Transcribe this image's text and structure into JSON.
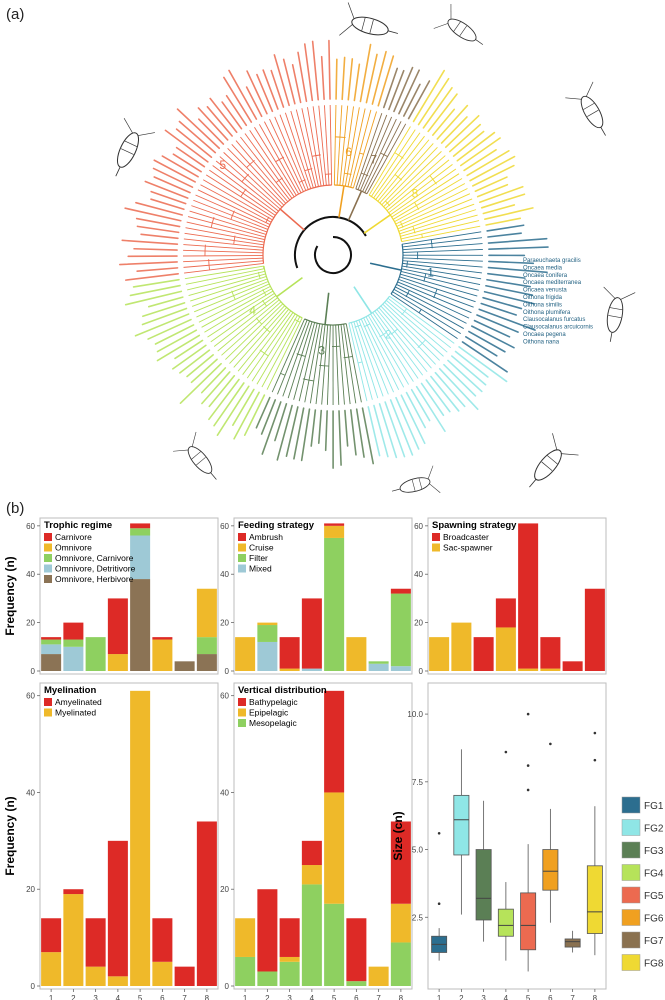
{
  "panel_a_label": "(a)",
  "panel_b_label": "(b)",
  "tree": {
    "group_labels": [
      "1",
      "2",
      "3",
      "4",
      "5",
      "6",
      "7",
      "8"
    ],
    "group_colors": [
      "#2c6e8f",
      "#8fe6e6",
      "#5b7f55",
      "#b6e35a",
      "#ec6a50",
      "#f0a020",
      "#8a7150",
      "#efd933"
    ],
    "right_species": [
      "Paraeuchaeta gracilis",
      "Oncaea media",
      "Oncaea conifera",
      "Oncaea mediterranea",
      "Oncaea venusta",
      "Oithona frigida",
      "Oithona similis",
      "Oithona plumifera",
      "Clausocalanus furcatus",
      "Clausocalanus arcuicornis",
      "Oncaea pegena",
      "Oithona nana"
    ]
  },
  "chart_data": [
    {
      "type": "bar",
      "stacked": true,
      "title": "Trophic regime",
      "categories": [
        "1",
        "2",
        "3",
        "4",
        "5",
        "6",
        "7",
        "8"
      ],
      "ylabel": "Frequency (n)",
      "ylim": [
        0,
        62
      ],
      "yticks": [
        0,
        20,
        40,
        60
      ],
      "series": [
        {
          "name": "Omnivore, Herbivore",
          "color": "#8b7355",
          "values": [
            7,
            0,
            0,
            0,
            38,
            0,
            4,
            7
          ]
        },
        {
          "name": "Omnivore, Detritivore",
          "color": "#9ec9d6",
          "values": [
            4,
            10,
            0,
            0,
            18,
            0,
            0,
            0
          ]
        },
        {
          "name": "Omnivore, Carnivore",
          "color": "#8ed060",
          "values": [
            2,
            3,
            14,
            0,
            3,
            0,
            0,
            7
          ]
        },
        {
          "name": "Omnivore",
          "color": "#efb92a",
          "values": [
            0,
            0,
            0,
            7,
            0,
            13,
            0,
            20
          ]
        },
        {
          "name": "Carnivore",
          "color": "#dd2a26",
          "values": [
            1,
            7,
            0,
            23,
            2,
            1,
            0,
            0
          ]
        }
      ]
    },
    {
      "type": "bar",
      "stacked": true,
      "title": "Feeding strategy",
      "categories": [
        "1",
        "2",
        "3",
        "4",
        "5",
        "6",
        "7",
        "8"
      ],
      "ylim": [
        0,
        62
      ],
      "yticks": [
        0,
        20,
        40,
        60
      ],
      "series": [
        {
          "name": "Mixed",
          "color": "#9ec9d6",
          "values": [
            0,
            12,
            0,
            1,
            0,
            0,
            3,
            2
          ]
        },
        {
          "name": "Filter",
          "color": "#8ed060",
          "values": [
            0,
            7,
            0,
            0,
            55,
            0,
            1,
            30
          ]
        },
        {
          "name": "Cruise",
          "color": "#efb92a",
          "values": [
            14,
            1,
            1,
            0,
            5,
            14,
            0,
            0
          ]
        },
        {
          "name": "Ambrush",
          "color": "#dd2a26",
          "values": [
            0,
            0,
            13,
            29,
            1,
            0,
            0,
            2
          ]
        }
      ]
    },
    {
      "type": "bar",
      "stacked": true,
      "title": "Spawning strategy",
      "categories": [
        "1",
        "2",
        "3",
        "4",
        "5",
        "6",
        "7",
        "8"
      ],
      "ylim": [
        0,
        62
      ],
      "yticks": [
        0,
        20,
        40,
        60
      ],
      "series": [
        {
          "name": "Sac-spawner",
          "color": "#efb92a",
          "values": [
            14,
            20,
            0,
            18,
            1,
            1,
            0,
            0
          ]
        },
        {
          "name": "Broadcaster",
          "color": "#dd2a26",
          "values": [
            0,
            0,
            14,
            12,
            60,
            13,
            4,
            34
          ]
        }
      ]
    },
    {
      "type": "bar",
      "stacked": true,
      "title": "Myelination",
      "categories": [
        "1",
        "2",
        "3",
        "4",
        "5",
        "6",
        "7",
        "8"
      ],
      "xticklabels": [
        "1",
        "2",
        "3",
        "4",
        "5",
        "6",
        "7",
        "8"
      ],
      "ylabel": "Frequency (n)",
      "ylim": [
        0,
        62
      ],
      "yticks": [
        0,
        20,
        40,
        60
      ],
      "series": [
        {
          "name": "Myelinated",
          "color": "#efb92a",
          "values": [
            7,
            19,
            4,
            2,
            61,
            5,
            0,
            0
          ]
        },
        {
          "name": "Amyelinated",
          "color": "#dd2a26",
          "values": [
            7,
            1,
            10,
            28,
            0,
            9,
            4,
            34
          ]
        }
      ]
    },
    {
      "type": "bar",
      "stacked": true,
      "title": "Vertical distribution",
      "categories": [
        "1",
        "2",
        "3",
        "4",
        "5",
        "6",
        "7",
        "8"
      ],
      "xticklabels": [
        "1",
        "2",
        "3",
        "4",
        "5",
        "6",
        "7",
        "8"
      ],
      "ylim": [
        0,
        62
      ],
      "yticks": [
        0,
        20,
        40,
        60
      ],
      "series": [
        {
          "name": "Mesopelagic",
          "color": "#8ed060",
          "values": [
            6,
            3,
            5,
            21,
            17,
            1,
            0,
            9
          ]
        },
        {
          "name": "Epipelagic",
          "color": "#efb92a",
          "values": [
            8,
            0,
            1,
            4,
            23,
            0,
            4,
            8
          ]
        },
        {
          "name": "Bathypelagic",
          "color": "#dd2a26",
          "values": [
            0,
            17,
            8,
            5,
            21,
            13,
            0,
            17
          ]
        }
      ]
    },
    {
      "type": "box",
      "ylabel": "Size (cn)",
      "categories": [
        "1",
        "2",
        "3",
        "4",
        "5",
        "6",
        "7",
        "8"
      ],
      "xticklabels": [
        "1",
        "2",
        "3",
        "4",
        "5",
        "6",
        "7",
        "8"
      ],
      "ylim": [
        0,
        11
      ],
      "yticks": [
        2.5,
        5.0,
        7.5,
        10.0
      ],
      "ytick_labels": [
        "2.5",
        "5.0",
        "7.5",
        "10.0"
      ],
      "boxes": [
        {
          "name": "FG1",
          "color": "#2c6e8f",
          "whisker_low": 0.9,
          "q1": 1.2,
          "median": 1.5,
          "q3": 1.8,
          "whisker_high": 2.1,
          "outliers": [
            3.0,
            5.6
          ]
        },
        {
          "name": "FG2",
          "color": "#8fe6e6",
          "whisker_low": 2.6,
          "q1": 4.8,
          "median": 6.1,
          "q3": 7.0,
          "whisker_high": 8.7,
          "outliers": []
        },
        {
          "name": "FG3",
          "color": "#5b7f55",
          "whisker_low": 1.6,
          "q1": 2.4,
          "median": 3.2,
          "q3": 5.0,
          "whisker_high": 6.8,
          "outliers": []
        },
        {
          "name": "FG4",
          "color": "#b6e35a",
          "whisker_low": 0.9,
          "q1": 1.8,
          "median": 2.2,
          "q3": 2.8,
          "whisker_high": 3.8,
          "outliers": [
            8.6
          ]
        },
        {
          "name": "FG5",
          "color": "#ec6a50",
          "whisker_low": 0.5,
          "q1": 1.3,
          "median": 2.2,
          "q3": 3.4,
          "whisker_high": 5.2,
          "outliers": [
            7.2,
            8.1,
            10.0
          ]
        },
        {
          "name": "FG6",
          "color": "#f0a020",
          "whisker_low": 2.3,
          "q1": 3.5,
          "median": 4.2,
          "q3": 5.0,
          "whisker_high": 6.5,
          "outliers": [
            8.9
          ]
        },
        {
          "name": "FG7",
          "color": "#8a7150",
          "whisker_low": 1.2,
          "q1": 1.4,
          "median": 1.6,
          "q3": 1.7,
          "whisker_high": 2.0,
          "outliers": []
        },
        {
          "name": "FG8",
          "color": "#efd933",
          "whisker_low": 1.1,
          "q1": 1.9,
          "median": 2.7,
          "q3": 4.4,
          "whisker_high": 6.6,
          "outliers": [
            8.3,
            9.3
          ]
        }
      ]
    }
  ],
  "fg_legend": [
    "FG1",
    "FG2",
    "FG3",
    "FG4",
    "FG5",
    "FG6",
    "FG7",
    "FG8"
  ]
}
